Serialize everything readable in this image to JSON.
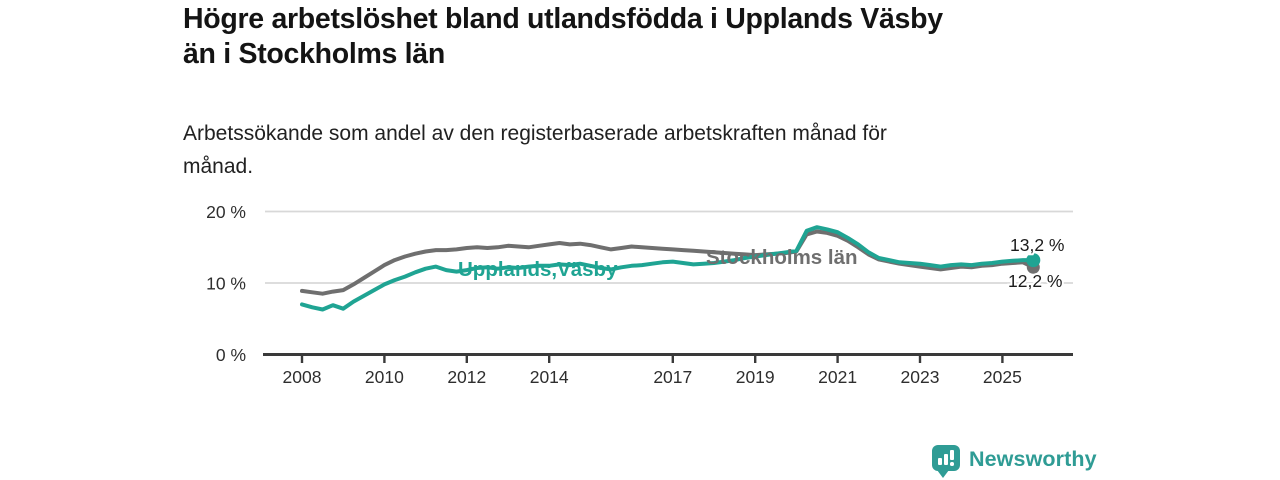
{
  "header": {
    "title": "Högre arbetslöshet bland utlandsfödda i Upplands Väsby\nän i Stockholms län",
    "subtitle": "Arbetssökande som andel av den registerbaserade arbetskraften månad för\nmånad."
  },
  "colors": {
    "accent_teal": "#1fa493",
    "line_gray": "#6f6f6f",
    "grid": "#d8d8d8",
    "axis": "#3a3a3a",
    "tick_text": "#2e2e2e",
    "value_text": "#1c1c1c",
    "brand_teal": "#2f9c95"
  },
  "chart_data": {
    "type": "line",
    "title": "Högre arbetslöshet bland utlandsfödda i Upplands Väsby än i Stockholms län",
    "subtitle": "Arbetssökande som andel av den registerbaserade arbetskraften månad för månad.",
    "xlabel": "",
    "ylabel": "",
    "ylim": [
      0,
      22
    ],
    "grid": true,
    "legend_position": "inline-labels",
    "x_ticks": [
      2008,
      2010,
      2012,
      2014,
      2017,
      2019,
      2021,
      2023,
      2025
    ],
    "y_ticks": [
      {
        "value": 0,
        "label": "0 %"
      },
      {
        "value": 10,
        "label": "10 %"
      },
      {
        "value": 20,
        "label": "20 %"
      }
    ],
    "x": [
      2008,
      2008.25,
      2008.5,
      2008.75,
      2009,
      2009.25,
      2009.5,
      2009.75,
      2010,
      2010.25,
      2010.5,
      2010.75,
      2011,
      2011.25,
      2011.5,
      2011.75,
      2012,
      2012.25,
      2012.5,
      2012.75,
      2013,
      2013.25,
      2013.5,
      2013.75,
      2014,
      2014.25,
      2014.5,
      2014.75,
      2015,
      2015.25,
      2015.5,
      2015.75,
      2016,
      2016.25,
      2016.5,
      2016.75,
      2017,
      2017.25,
      2017.5,
      2017.75,
      2018,
      2018.25,
      2018.5,
      2018.75,
      2019,
      2019.25,
      2019.5,
      2019.75,
      2020,
      2020.25,
      2020.5,
      2020.75,
      2021,
      2021.25,
      2021.5,
      2021.75,
      2022,
      2022.25,
      2022.5,
      2022.75,
      2023,
      2023.25,
      2023.5,
      2023.75,
      2024,
      2024.25,
      2024.5,
      2024.75,
      2025,
      2025.25,
      2025.5,
      2025.75
    ],
    "series": [
      {
        "name": "Upplands Väsby",
        "inline_label": "Upplands,Väsby",
        "color": "#1fa493",
        "end_label": "13,2 %",
        "end_value": 13.2,
        "values": [
          7.0,
          6.6,
          6.3,
          6.9,
          6.4,
          7.4,
          8.2,
          9.0,
          9.8,
          10.4,
          10.9,
          11.5,
          12.0,
          12.3,
          11.8,
          11.6,
          11.8,
          12.1,
          12.2,
          12.0,
          12.2,
          12.1,
          12.3,
          12.4,
          12.4,
          12.6,
          12.5,
          12.7,
          12.4,
          12.1,
          11.9,
          12.2,
          12.4,
          12.5,
          12.7,
          12.9,
          13.0,
          12.8,
          12.6,
          12.7,
          12.8,
          13.0,
          13.2,
          13.5,
          13.7,
          13.9,
          14.1,
          14.3,
          14.5,
          17.3,
          17.8,
          17.5,
          17.1,
          16.3,
          15.4,
          14.3,
          13.5,
          13.2,
          12.9,
          12.8,
          12.7,
          12.5,
          12.3,
          12.5,
          12.6,
          12.5,
          12.7,
          12.8,
          13.0,
          13.1,
          13.2,
          13.2
        ]
      },
      {
        "name": "Stockholms län",
        "inline_label": "Stockholms län",
        "color": "#6f6f6f",
        "end_label": "12,2 %",
        "end_value": 12.2,
        "values": [
          8.9,
          8.7,
          8.5,
          8.8,
          9.0,
          9.8,
          10.7,
          11.6,
          12.5,
          13.2,
          13.7,
          14.1,
          14.4,
          14.6,
          14.6,
          14.7,
          14.9,
          15.0,
          14.9,
          15.0,
          15.2,
          15.1,
          15.0,
          15.2,
          15.4,
          15.6,
          15.4,
          15.5,
          15.3,
          15.0,
          14.7,
          14.9,
          15.1,
          15.0,
          14.9,
          14.8,
          14.7,
          14.6,
          14.5,
          14.4,
          14.3,
          14.2,
          14.1,
          14.0,
          13.9,
          14.0,
          14.1,
          14.2,
          14.4,
          16.8,
          17.2,
          17.0,
          16.6,
          15.9,
          15.0,
          14.0,
          13.3,
          13.0,
          12.7,
          12.5,
          12.3,
          12.1,
          11.9,
          12.1,
          12.3,
          12.2,
          12.4,
          12.5,
          12.7,
          12.8,
          12.9,
          12.2
        ]
      }
    ]
  },
  "footer": {
    "brand": "Newsworthy",
    "logo_icon": "bar-chart-speech-bubble-icon"
  }
}
